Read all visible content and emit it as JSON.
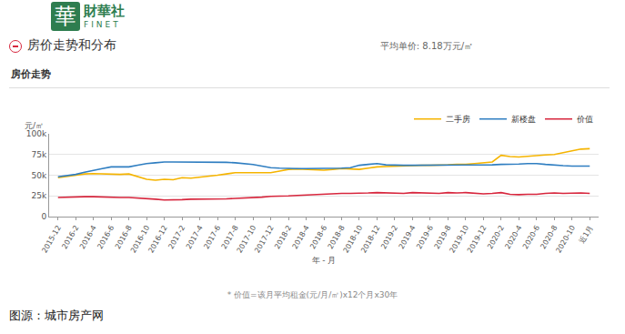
{
  "header": {
    "logo": {
      "mark": "華",
      "name": "財華社",
      "latin": "FINET"
    },
    "title": "房价走势和分布",
    "average": "平均单价: 8.18万元/㎡",
    "section": "房价走势"
  },
  "chart_data": {
    "type": "line",
    "ylabel": "元/㎡",
    "xlabel": "年 - 月",
    "note": "* 价值=该月平均租金(元/月/㎡)x12个月x30年",
    "categories": [
      "2015-12",
      null,
      "2016-2",
      null,
      "2016-4",
      null,
      "2016-6",
      null,
      "2016-8",
      null,
      "2016-10",
      null,
      "2016-12",
      null,
      "2017-2",
      null,
      "2017-4",
      null,
      "2017-6",
      null,
      "2017-8",
      null,
      "2017-10",
      null,
      "2017-12",
      null,
      "2018-2",
      null,
      "2018-4",
      null,
      "2018-6",
      null,
      "2018-8",
      null,
      "2018-10",
      null,
      "2018-12",
      null,
      "2019-2",
      null,
      "2019-4",
      null,
      "2019-6",
      null,
      "2019-8",
      null,
      "2019-10",
      null,
      "2019-12",
      null,
      "2020-2",
      null,
      "2020-4",
      null,
      "2020-6",
      null,
      "2020-8",
      null,
      "2020-10",
      null,
      "近1月"
    ],
    "series": [
      {
        "name": "二手房",
        "color": "#f5b400",
        "values": [
          47000,
          48500,
          50500,
          51500,
          52000,
          51500,
          51000,
          51000,
          51500,
          48000,
          45000,
          44000,
          45000,
          44500,
          47000,
          46500,
          47500,
          48500,
          50000,
          51500,
          53000,
          53000,
          53000,
          53000,
          53000,
          55000,
          57000,
          57500,
          57000,
          56000,
          56000,
          57000,
          58000,
          57500,
          57000,
          58500,
          60000,
          60500,
          61000,
          61500,
          62000,
          62000,
          62000,
          62000,
          62500,
          63000,
          63000,
          64000,
          65000,
          66000,
          74000,
          72500,
          72000,
          73000,
          74000,
          74500,
          75000,
          77000,
          79000,
          81500,
          82000
        ]
      },
      {
        "name": "新楼盘",
        "color": "#2f7ec1",
        "values": [
          48000,
          49500,
          51000,
          53500,
          56000,
          58000,
          60000,
          60000,
          60000,
          62000,
          64000,
          65000,
          66000,
          66000,
          66000,
          66000,
          66000,
          66000,
          66000,
          65500,
          65000,
          64000,
          63000,
          61000,
          59000,
          58500,
          58000,
          58000,
          58000,
          58000,
          58000,
          58000,
          58500,
          59000,
          62000,
          63000,
          64000,
          62500,
          62000,
          62000,
          62000,
          62000,
          62000,
          62000,
          62000,
          62500,
          62500,
          62500,
          62500,
          62500,
          63000,
          63000,
          63500,
          64000,
          64000,
          63000,
          62000,
          61500,
          61000,
          61000,
          61000
        ]
      },
      {
        "name": "价值",
        "color": "#d7263d",
        "values": [
          23000,
          23500,
          23500,
          24000,
          24000,
          23500,
          23500,
          23000,
          23000,
          22500,
          22000,
          21000,
          20000,
          20000,
          20500,
          21000,
          21000,
          21500,
          21500,
          21500,
          22000,
          22500,
          22500,
          23500,
          24500,
          24500,
          25000,
          25500,
          26000,
          27000,
          27500,
          27500,
          28000,
          28000,
          28000,
          28500,
          29000,
          28500,
          28000,
          28000,
          29000,
          28500,
          28500,
          28000,
          29000,
          28500,
          29000,
          28500,
          27500,
          28000,
          29000,
          27000,
          26500,
          27000,
          27000,
          28000,
          28500,
          28000,
          28500,
          28500,
          28000
        ]
      }
    ],
    "ylim": [
      0,
      100000
    ],
    "yticks": [
      0,
      {
        "value": 25000,
        "label": "25k"
      },
      {
        "value": 50000,
        "label": "50k"
      },
      {
        "value": 75000,
        "label": "75k"
      },
      {
        "value": 100000,
        "label": "100k"
      }
    ],
    "grid": true,
    "legend": "top-right"
  },
  "source": "图源：城市房产网"
}
